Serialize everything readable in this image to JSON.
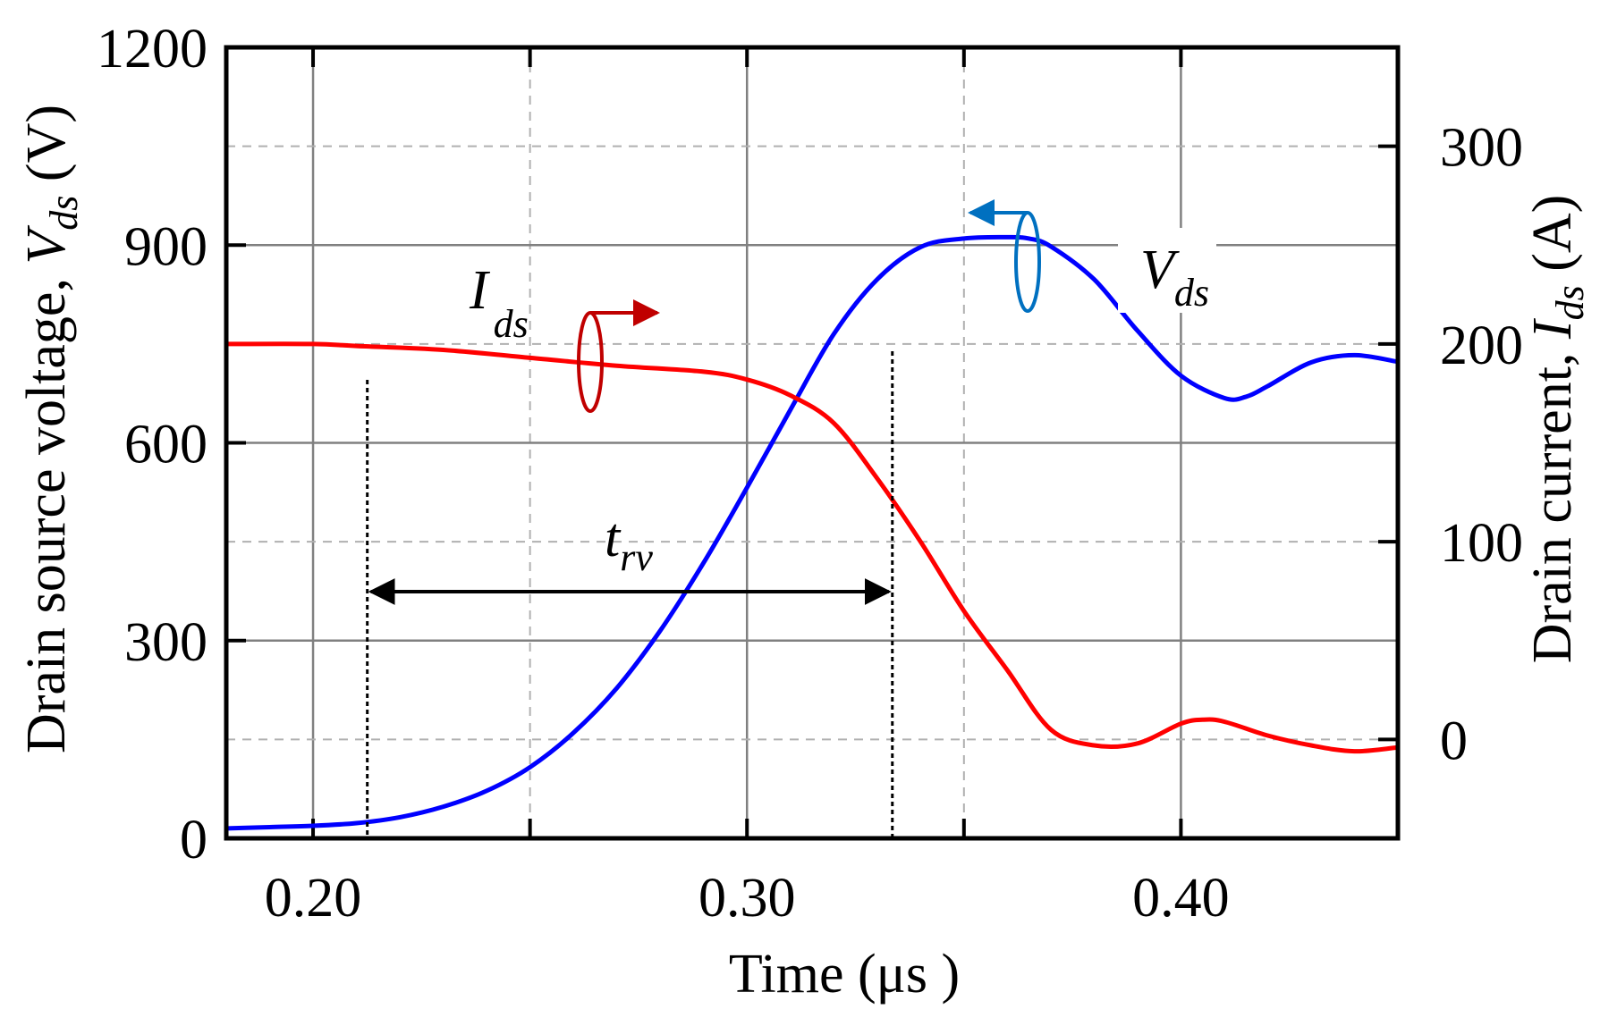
{
  "chart_data": {
    "type": "line",
    "xlabel": "Time (μs )",
    "ylabel_left": {
      "prefix": "Drain source voltage,  ",
      "symbol": "V",
      "subscript": "ds",
      "unit": " (V)"
    },
    "ylabel_right": {
      "prefix": "Drain current,  ",
      "symbol": "I",
      "subscript": "ds",
      "unit": " (A)"
    },
    "xlim": [
      0.18,
      0.45
    ],
    "ylim_left": [
      0,
      1200
    ],
    "ylim_right": [
      -50,
      350
    ],
    "x_ticks": [
      0.2,
      0.3,
      0.4
    ],
    "x_tick_labels": [
      "0.20",
      "0.30",
      "0.40"
    ],
    "y_left_ticks": [
      0,
      300,
      600,
      900,
      1200
    ],
    "y_left_tick_labels": [
      "0",
      "300",
      "600",
      "900",
      "1200"
    ],
    "y_right_ticks": [
      0,
      100,
      200,
      300
    ],
    "y_right_tick_labels": [
      "0",
      "100",
      "200",
      "300"
    ],
    "grid": true,
    "series": [
      {
        "name": "Vds",
        "axis": "left",
        "color": "#0000ff",
        "x": [
          0.18,
          0.19,
          0.2,
          0.21,
          0.22,
          0.23,
          0.24,
          0.25,
          0.26,
          0.27,
          0.28,
          0.29,
          0.3,
          0.31,
          0.32,
          0.33,
          0.34,
          0.35,
          0.36,
          0.365,
          0.37,
          0.38,
          0.39,
          0.4,
          0.41,
          0.415,
          0.42,
          0.43,
          0.44,
          0.45
        ],
        "values": [
          15,
          17,
          19,
          23,
          32,
          48,
          72,
          108,
          160,
          228,
          315,
          418,
          532,
          650,
          765,
          848,
          897,
          910,
          912,
          910,
          898,
          848,
          770,
          702,
          668,
          670,
          686,
          722,
          733,
          723
        ]
      },
      {
        "name": "Ids",
        "axis": "right",
        "color": "#ff0000",
        "x": [
          0.18,
          0.2,
          0.21,
          0.23,
          0.25,
          0.27,
          0.29,
          0.3,
          0.31,
          0.32,
          0.33,
          0.34,
          0.35,
          0.36,
          0.37,
          0.38,
          0.39,
          0.4,
          0.405,
          0.41,
          0.42,
          0.43,
          0.44,
          0.45
        ],
        "values": [
          200,
          200,
          199,
          197,
          193,
          189,
          186,
          182,
          174,
          160,
          132,
          100,
          65,
          35,
          5,
          -3,
          -2,
          8,
          10,
          9,
          2,
          -3,
          -6,
          -4
        ]
      }
    ],
    "annotations": {
      "ids_label": {
        "symbol": "I",
        "subscript": "ds",
        "axis_arrow": "right"
      },
      "vds_label": {
        "symbol": "V",
        "subscript": "ds",
        "axis_arrow": "left"
      },
      "trv_label": {
        "symbol": "t",
        "subscript": "rv"
      },
      "trv_start_x": 0.2125,
      "trv_end_x": 0.3335,
      "ids_arrow_color": "#c00000",
      "vds_arrow_color": "#0070c0"
    }
  }
}
